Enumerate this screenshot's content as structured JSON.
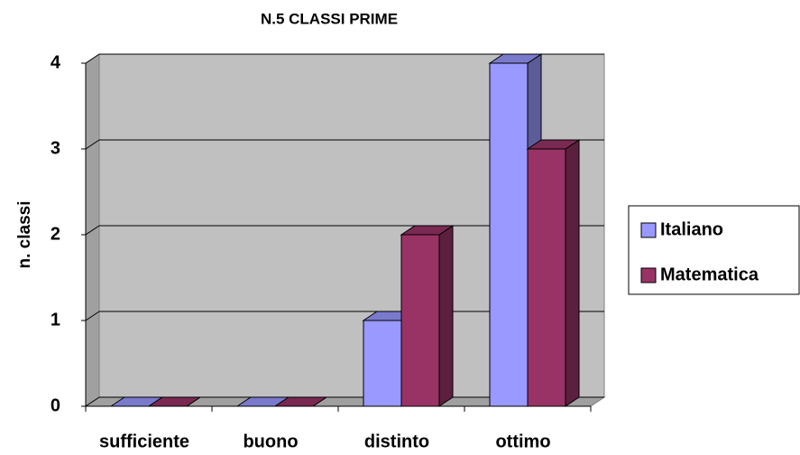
{
  "chart_data": {
    "type": "bar",
    "title": "N.5 CLASSI PRIME",
    "y_label": "n. classi",
    "categories": [
      "sufficiente",
      "buono",
      "distinto",
      "ottimo"
    ],
    "series": [
      {
        "name": "Italiano",
        "color": "#9999ff",
        "values": [
          0,
          0,
          1,
          4
        ]
      },
      {
        "name": "Matematica",
        "color": "#993366",
        "values": [
          0,
          0,
          2,
          3
        ]
      }
    ],
    "ylim": [
      0,
      4
    ],
    "yticks": [
      0,
      1,
      2,
      3,
      4
    ],
    "grid": true,
    "legend": "right"
  }
}
